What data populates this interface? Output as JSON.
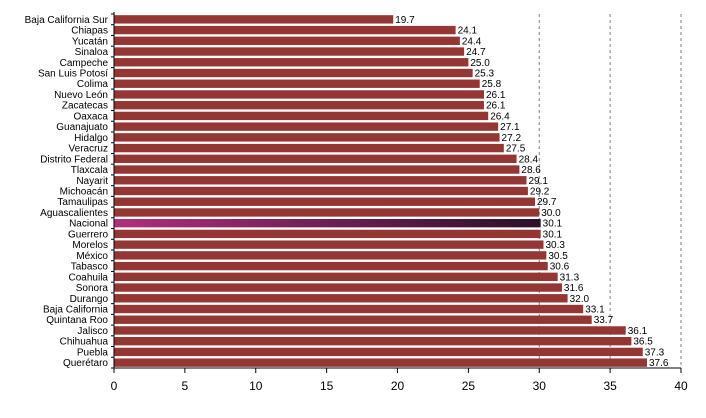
{
  "chart_data": {
    "type": "bar",
    "orientation": "horizontal",
    "categories": [
      "Baja California Sur",
      "Chiapas",
      "Yucatán",
      "Sinaloa",
      "Campeche",
      "San Luis Potosí",
      "Colima",
      "Nuevo León",
      "Zacatecas",
      "Oaxaca",
      "Guanajuato",
      "Hidalgo",
      "Veracruz",
      "Distrito Federal",
      "Tlaxcala",
      "Nayarit",
      "Michoacán",
      "Tamaulipas",
      "Aguascalientes",
      "Nacional",
      "Guerrero",
      "Morelos",
      "México",
      "Tabasco",
      "Coahuila",
      "Sonora",
      "Durango",
      "Baja California",
      "Quintana Roo",
      "Jalisco",
      "Chihuahua",
      "Puebla",
      "Querétaro"
    ],
    "value_labels": [
      "19.7",
      "24.1",
      "24.4",
      "24.7",
      "25.0",
      "25.3",
      "25.8",
      "26.1",
      "26.1",
      "26.4",
      "27.1",
      "27.2",
      "27.5",
      "28.4",
      "28.6",
      "29.1",
      "29.2",
      "29.7",
      "30.0",
      "30.1",
      "30.1",
      "30.3",
      "30.5",
      "30.6",
      "31.3",
      "31.6",
      "32.0",
      "33.1",
      "33.7",
      "36.1",
      "36.5",
      "37.3",
      "37.6"
    ],
    "values": [
      19.7,
      24.1,
      24.4,
      24.7,
      25.0,
      25.3,
      25.8,
      26.1,
      26.1,
      26.4,
      27.1,
      27.2,
      27.5,
      28.4,
      28.6,
      29.1,
      29.2,
      29.7,
      30.0,
      30.1,
      30.1,
      30.3,
      30.5,
      30.6,
      31.3,
      31.6,
      32.0,
      33.1,
      33.7,
      36.1,
      36.5,
      37.3,
      37.6
    ],
    "highlight_category": "Nacional",
    "xlim": [
      0,
      40
    ],
    "xticks": [
      "0",
      "5",
      "10",
      "15",
      "20",
      "25",
      "30",
      "35",
      "40"
    ],
    "grid": "vertical dashed at 30, 35, 40",
    "colors": {
      "bar": "#943634",
      "highlight_start": "#b0307a",
      "highlight_end": "#2a1028",
      "grid": "#808080"
    },
    "title": "",
    "xlabel": "",
    "ylabel": ""
  }
}
